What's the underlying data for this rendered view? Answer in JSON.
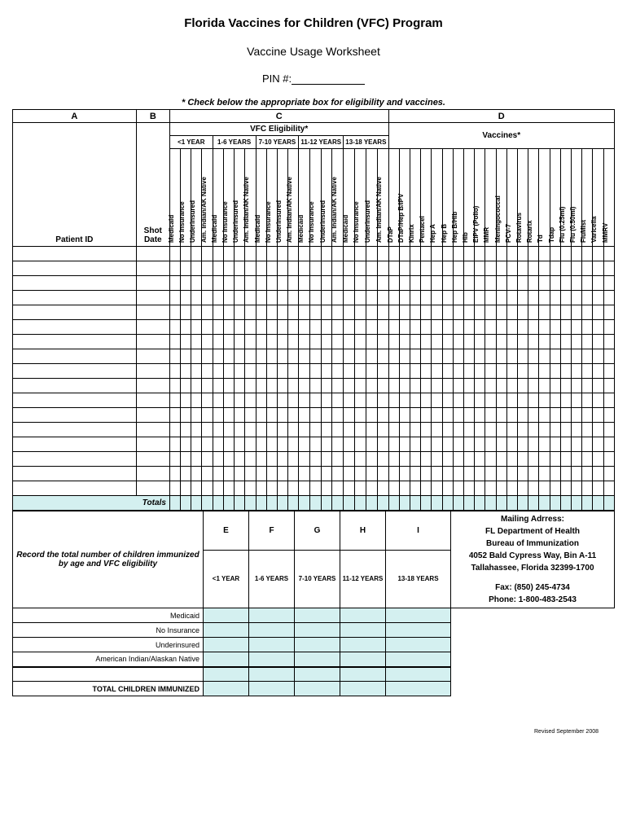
{
  "title": "Florida Vaccines for Children (VFC) Program",
  "subtitle": "Vaccine Usage Worksheet",
  "pin_label": "PIN #:",
  "instruction": "* Check below the appropriate box for eligibility and vaccines.",
  "sections": {
    "a": "A",
    "b": "B",
    "c": "C",
    "d": "D",
    "e": "E",
    "f": "F",
    "g": "G",
    "h": "H",
    "i": "I"
  },
  "headers": {
    "patient_id": "Patient ID",
    "shot_date": "Shot Date",
    "vfc_eligibility": "VFC Eligibility*",
    "vaccines": "Vaccines*"
  },
  "age_groups": [
    "<1 YEAR",
    "1-6 YEARS",
    "7-10 YEARS",
    "11-12 YEARS",
    "13-18 YEARS"
  ],
  "eligibility_types": [
    "Medicaid",
    "No Insurance",
    "Underinsured",
    "Am. Indian/AK Native"
  ],
  "vaccines": [
    "DTaP",
    "DTaP/Hep B/IPV",
    "Kinrix",
    "Pentacel",
    "Hep A",
    "Hep B",
    "Hep B/Hib",
    "Hib",
    "EIPV (Polio)",
    "MMR",
    "Meningococcal",
    "PCV-7",
    "Rotavirus",
    "Rotarix",
    "Td",
    "Tdap",
    "Flu (0.25ml)",
    "Flu (0.50ml)",
    "FluMist",
    "Varicella",
    "MMRV"
  ],
  "data_row_count": 17,
  "totals_label": "Totals",
  "summary": {
    "record_text_line1": "Record the total number of children immunized",
    "record_text_line2": "by age and VFC eligibility",
    "rows": [
      "Medicaid",
      "No Insurance",
      "Underinsured",
      "American Indian/Alaskan Native"
    ],
    "total_label": "TOTAL CHILDREN IMMUNIZED"
  },
  "address": {
    "mailing": "Mailing Adrress:",
    "line1": "FL Department of Health",
    "line2": "Bureau of Immunization",
    "line3": "4052 Bald Cypress Way, Bin A-11",
    "line4": "Tallahassee, Florida  32399-1700",
    "fax": "Fax: (850) 245-4734",
    "phone": "Phone: 1-800-483-2543"
  },
  "footer": "Revised September 2008",
  "colors": {
    "highlight": "#d4f0f0",
    "border": "#000000",
    "background": "#ffffff"
  }
}
